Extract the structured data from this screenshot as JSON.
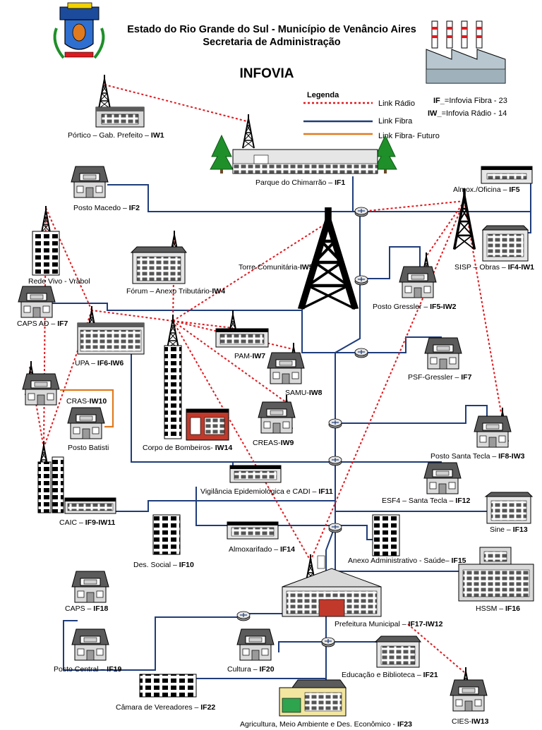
{
  "header": {
    "line1": "Estado do Rio Grande do Sul - Município de Venâncio Aires",
    "line2": "Secretaria de Administração",
    "title": "INFOVIA"
  },
  "legend": {
    "title": "Legenda",
    "radio": "Link Rádio",
    "fibra": "Link Fibra",
    "futuro": "Link Fibra- Futuro",
    "if_prefix": "IF_",
    "if_text": "=Infovia Fibra - 23",
    "iw_prefix": "IW_",
    "iw_text": "=Infovia Rádio - 14"
  },
  "colors": {
    "radio": "#e0191f",
    "fibra": "#1f3d7a",
    "futuro": "#e07a1f"
  },
  "nodes": [
    {
      "id": "portico",
      "name": "Pórtico – Gab. Prefeito – ",
      "code": "IW1"
    },
    {
      "id": "chimarrao",
      "name": "Parque do Chimarrão – ",
      "code": "IF1"
    },
    {
      "id": "macedo",
      "name": "Posto Macedo – ",
      "code": "IF2"
    },
    {
      "id": "almox_oficina",
      "name": "Almox./Oficina – ",
      "code": "IF5"
    },
    {
      "id": "redevivo",
      "name": "Rede Vivo - Vrabol",
      "code": ""
    },
    {
      "id": "forum",
      "name": "Fórum – Anexo Tributário-",
      "code": "IW4"
    },
    {
      "id": "torre",
      "name": "Torre Comunitária-",
      "code": "IW5"
    },
    {
      "id": "sisp",
      "name": "SISP – Obras – ",
      "code": "IF4-IW1"
    },
    {
      "id": "capsad",
      "name": "CAPS AD – ",
      "code": "IF7"
    },
    {
      "id": "gressler",
      "name": "Posto Gressler – ",
      "code": "IF5-IW2"
    },
    {
      "id": "upa",
      "name": "UPA – ",
      "code": "IF6-IW6"
    },
    {
      "id": "pam",
      "name": "PAM-",
      "code": "IW7"
    },
    {
      "id": "samu",
      "name": "SAMU-",
      "code": "IW8"
    },
    {
      "id": "psf",
      "name": "PSF-Gressler – ",
      "code": "IF7"
    },
    {
      "id": "cras",
      "name": "CRAS-",
      "code": "IW10"
    },
    {
      "id": "creas",
      "name": "CREAS-",
      "code": "IW9"
    },
    {
      "id": "batisti",
      "name": "Posto Batisti",
      "code": ""
    },
    {
      "id": "bombeiros",
      "name": "Corpo de Bombeiros- ",
      "code": "IW14"
    },
    {
      "id": "santatecla",
      "name": "Posto Santa Tecla – ",
      "code": "IF8-IW3"
    },
    {
      "id": "vigilancia",
      "name": "Vigilância Epidemiológica e CADI – ",
      "code": "IF11"
    },
    {
      "id": "esf4",
      "name": "ESF4 – Santa Tecla – ",
      "code": "IF12"
    },
    {
      "id": "caic",
      "name": "CAIC – ",
      "code": "IF9-IW11"
    },
    {
      "id": "sine",
      "name": "Sine – ",
      "code": "IF13"
    },
    {
      "id": "almoxarifado",
      "name": "Almoxarifado – ",
      "code": "IF14"
    },
    {
      "id": "dessocial",
      "name": "Des. Social – ",
      "code": "IF10"
    },
    {
      "id": "anexo",
      "name": "Anexo Administrativo - Saúde– ",
      "code": "IF15"
    },
    {
      "id": "caps",
      "name": "CAPS – ",
      "code": "IF18"
    },
    {
      "id": "hssm",
      "name": "HSSM – ",
      "code": "IF16"
    },
    {
      "id": "prefeitura",
      "name": "Prefeitura Municipal – ",
      "code": "IF17-IW12"
    },
    {
      "id": "central",
      "name": "Posto Central – ",
      "code": "IF19"
    },
    {
      "id": "cultura",
      "name": "Cultura – ",
      "code": "IF20"
    },
    {
      "id": "educacao",
      "name": "Educação e Biblioteca – ",
      "code": "IF21"
    },
    {
      "id": "camara",
      "name": "Câmara de Vereadores – ",
      "code": "IF22"
    },
    {
      "id": "cies",
      "name": "CIES-",
      "code": "IW13"
    },
    {
      "id": "agricultura",
      "name": "Agricultura, Meio Ambiente e Des. Econômico - ",
      "code": "IF23"
    }
  ]
}
